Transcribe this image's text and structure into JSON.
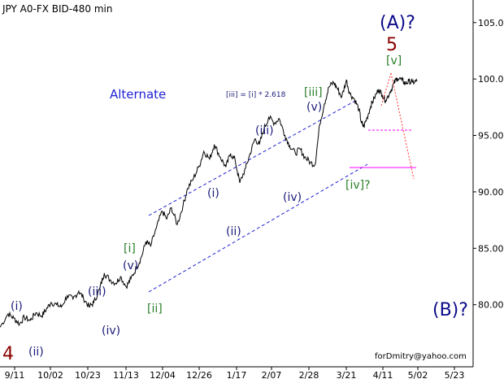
{
  "title": "JPY A0-FX BID-480 min",
  "footer": "forDmitry@yahoo.com",
  "colors": {
    "price": "#000000",
    "channel": "#1f1fd6",
    "primary_wave": "#8b0000",
    "intermediate_wave": "#0b0b8a",
    "minor_label": "#2a7f2a",
    "minute_label": "#1b1b7a",
    "target_line": "#ff00ff"
  },
  "chart_data": {
    "type": "line",
    "title": "JPY A0-FX BID-480 min",
    "xlabel": "",
    "ylabel": "",
    "ylim": [
      74.5,
      107.0
    ],
    "grid": false,
    "x_ticks": [
      "9/11",
      "10/02",
      "10/23",
      "11/13",
      "12/04",
      "12/26",
      "1/17",
      "2/07",
      "2/28",
      "3/21",
      "4/11",
      "5/02",
      "5/23"
    ],
    "y_ticks": [
      80.0,
      85.0,
      90.0,
      95.0,
      100.0,
      105.0
    ],
    "series": [
      {
        "name": "",
        "x": [
          0.0,
          0.7,
          1.2,
          1.7,
          2.1,
          2.6,
          3.1,
          3.6,
          4.0,
          4.4,
          4.9,
          5.3,
          5.8,
          6.3,
          6.8,
          7.2,
          7.7,
          8.1,
          8.6,
          9.0,
          9.5,
          10.0,
          10.4,
          10.9,
          11.3,
          11.8,
          12.2,
          12.6,
          13.0,
          13.5,
          14.0,
          14.4,
          14.8,
          15.3,
          15.8,
          16.2,
          16.7,
          17.2,
          17.6,
          18.1,
          18.5,
          19.0,
          19.5,
          19.9,
          20.3,
          20.7,
          21.2,
          21.6,
          22.0,
          22.4,
          22.8,
          23.2,
          23.7,
          24.1,
          24.6,
          25.0,
          25.5,
          25.9,
          26.3,
          26.8,
          27.2,
          27.6,
          28.0,
          28.4,
          28.8,
          29.1,
          29.5,
          29.9,
          30.2,
          30.6,
          31.0,
          31.2,
          31.4,
          31.7,
          32.0,
          32.3,
          32.7,
          33.0,
          33.3,
          33.7,
          34.0,
          34.3,
          34.7,
          35.0,
          35.3,
          35.6,
          36.0
        ],
        "values": [
          78.0,
          79.2,
          78.8,
          78.3,
          78.9,
          78.6,
          79.3,
          79.0,
          79.6,
          80.2,
          80.0,
          79.8,
          80.8,
          80.5,
          81.2,
          80.6,
          79.8,
          80.2,
          81.4,
          82.8,
          82.2,
          81.9,
          82.5,
          81.6,
          82.3,
          83.3,
          84.2,
          85.6,
          85.2,
          86.8,
          88.3,
          87.6,
          88.6,
          87.1,
          88.8,
          90.3,
          91.2,
          92.3,
          93.6,
          92.9,
          94.2,
          93.1,
          92.2,
          93.4,
          92.8,
          90.8,
          92.1,
          93.4,
          94.7,
          94.2,
          95.6,
          96.6,
          96.1,
          96.5,
          95.0,
          94.1,
          93.4,
          93.8,
          93.1,
          92.6,
          92.4,
          96.0,
          97.8,
          99.3,
          99.7,
          99.2,
          98.4,
          99.9,
          98.7,
          98.2,
          97.3,
          96.1,
          95.8,
          96.6,
          97.6,
          98.3,
          99.1,
          98.6,
          98.1,
          98.9,
          99.6,
          100.1,
          99.9,
          99.6,
          99.8,
          99.7,
          99.8
        ]
      }
    ],
    "annotations": [
      "(A)?",
      "5",
      "[v]",
      "(B)?",
      "4",
      "Alternate",
      "[iii] = [i] * 2.618",
      "[iii]",
      "(v)",
      "(iii)",
      "(iv)",
      "[iv]?",
      "(i)",
      "(ii)",
      "[i]",
      "(v)",
      "[ii]",
      "(iii)",
      "(iv)",
      "(i)",
      "(ii)"
    ]
  }
}
